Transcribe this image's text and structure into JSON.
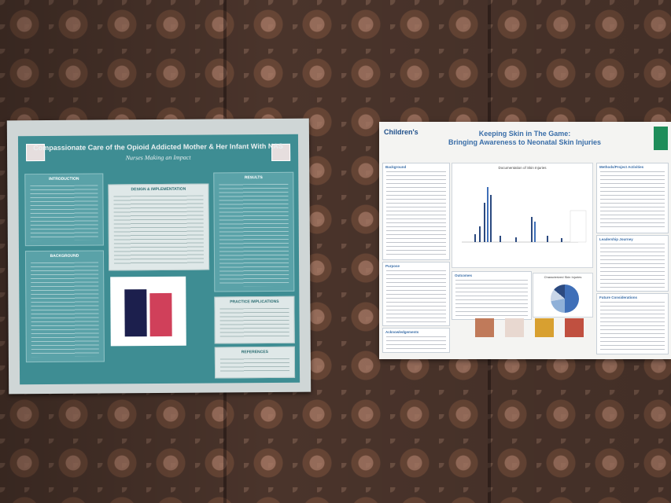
{
  "poster_left": {
    "title": "Compassionate Care of the Opioid Addicted Mother & Her Infant With NAS",
    "subtitle": "Nurses Making an Impact",
    "sections": {
      "introduction": "INTRODUCTION",
      "background": "BACKGROUND",
      "design": "DESIGN & IMPLEMENTATION",
      "results": "RESULTS",
      "practice": "PRACTICE IMPLICATIONS",
      "references": "REFERENCES"
    },
    "colors": {
      "panel": "#3e8d93",
      "bar_a": "#1c1f4d",
      "bar_b": "#d0405a"
    }
  },
  "poster_right": {
    "logo": "Children's",
    "title_line1": "Keeping Skin in The Game:",
    "title_line2": "Bringing Awareness to Neonatal Skin Injuries",
    "sections": {
      "background": "Background",
      "purpose": "Purpose",
      "outcomes": "Outcomes",
      "acknowledgements": "Acknowledgements",
      "methods": "Methods/Project Activities",
      "leadership": "Leadership Journey",
      "future": "Future Considerations"
    },
    "chart_title": "Documentation of Skin Injuries",
    "pie_title": "Characterized Skin Injuries",
    "colors": {
      "title": "#3a6ea8",
      "accent": "#1e8d5a"
    }
  }
}
